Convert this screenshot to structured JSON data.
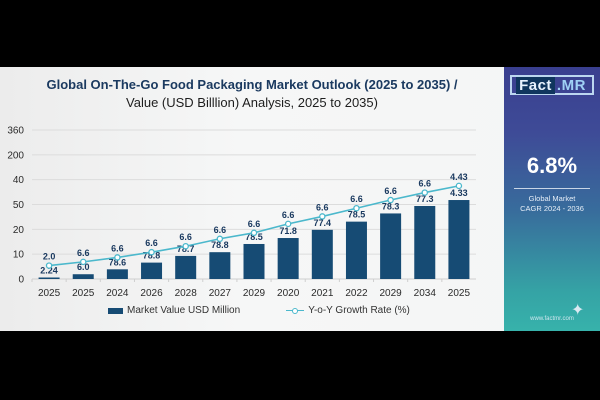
{
  "title_line1": "Global On-The-Go Food Packaging Market Outlook (2025 to 2035) /",
  "title_line2": "Value (USD Billlion)  Analysis, 2025 to 2035)",
  "brand": {
    "logo_part1": "Fact",
    "logo_part2": ".MR",
    "website": "www.factmr.com"
  },
  "side_panel": {
    "cagr_value": "6.8%",
    "cagr_label_line1": "Global Market",
    "cagr_label_line2": "CAGR 2024 - 2036"
  },
  "colors": {
    "bar": "#164b74",
    "line": "#4bb8cc",
    "title": "#1b3a60"
  },
  "chart_data": {
    "type": "bar",
    "title": "Global On-The-Go Food Packaging Market Outlook (2025 to 2035) / Value (USD Billlion)  Analysis, 2025 to 2035)",
    "xlabel": "",
    "ylabel": "",
    "y_tick_labels": [
      "0",
      "10",
      "20",
      "50",
      "40",
      "200",
      "360"
    ],
    "grid": true,
    "legend_position": "bottom",
    "categories": [
      "2025",
      "2025",
      "2024",
      "2026",
      "2028",
      "2027",
      "2029",
      "2020",
      "2021",
      "2022",
      "2029",
      "2034",
      "2025"
    ],
    "series": [
      {
        "name": "Market Value USD Million",
        "type": "bar",
        "values": [
          2.24,
          6.0,
          78.6,
          78.8,
          78.7,
          78.8,
          78.5,
          71.8,
          77.4,
          78.5,
          78.3,
          77.3,
          4.33
        ],
        "value_labels": [
          "2.24",
          "6.0",
          "78.6",
          "78.8",
          "78.7",
          "78.8",
          "78.5",
          "71.8",
          "77.4",
          "78.5",
          "78.3",
          "77.3",
          "4.33"
        ],
        "visual_level": [
          0.005,
          0.032,
          0.065,
          0.11,
          0.155,
          0.18,
          0.235,
          0.275,
          0.33,
          0.385,
          0.44,
          0.49,
          0.53
        ]
      },
      {
        "name": "Y-o-Y Growth Rate (%)",
        "type": "line",
        "values": [
          2.0,
          6.6,
          6.6,
          6.6,
          6.6,
          6.6,
          6.6,
          6.6,
          6.6,
          6.6,
          6.6,
          6.6,
          4.43
        ],
        "value_labels": [
          "2.0",
          "6.6",
          "6.6",
          "6.6",
          "6.6",
          "6.6",
          "6.6",
          "6.6",
          "6.6",
          "6.6",
          "6.6",
          "6.6",
          "4.43"
        ],
        "visual_level": [
          0.09,
          0.115,
          0.145,
          0.18,
          0.22,
          0.27,
          0.31,
          0.37,
          0.42,
          0.475,
          0.53,
          0.58,
          0.625
        ]
      }
    ]
  },
  "legend": {
    "bar_label": "Market Value USD Million",
    "line_label": "Y-o-Y Growth Rate (%)"
  }
}
